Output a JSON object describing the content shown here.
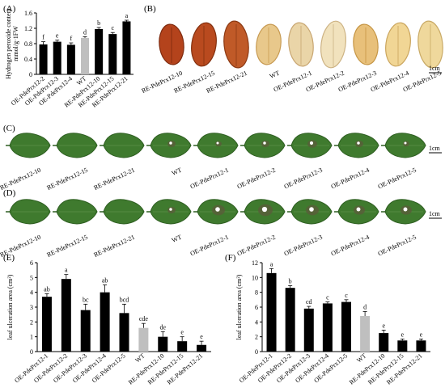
{
  "panels": {
    "A": {
      "label": "(A)"
    },
    "B": {
      "label": "(B)",
      "scale": "1cm",
      "labels": [
        "RE-PdePrx12-10",
        "RE-PdePrx12-15",
        "RE-PdePrx12-21",
        "WT",
        "OE-PdePrx12-1",
        "OE-PdePrx12-2",
        "OE-PdePrx12-3",
        "OE-PdePrx12-4",
        "OE-PdePrx12-5"
      ]
    },
    "C": {
      "label": "(C)",
      "scale": "1cm",
      "labels": [
        "RE-PdePrx12-10",
        "RE-PdePrx12-15",
        "RE-PdePrx12-21",
        "WT",
        "OE-PdePrx12-1",
        "OE-PdePrx12-2",
        "OE-PdePrx12-3",
        "OE-PdePrx12-4",
        "OE-PdePrx12-5"
      ]
    },
    "D": {
      "label": "(D)",
      "scale": "1cm",
      "labels": [
        "RE-PdePrx12-10",
        "RE-PdePrx12-15",
        "RE-PdePrx12-21",
        "WT",
        "OE-PdePrx12-1",
        "OE-PdePrx12-2",
        "OE-PdePrx12-3",
        "OE-PdePrx12-4",
        "OE-PdePrx12-5"
      ]
    },
    "E": {
      "label": "(E)"
    },
    "F": {
      "label": "(F)"
    }
  },
  "colors": {
    "bar": "#000000",
    "wt": "#bfbfbf",
    "leaf": "#3f7a2e",
    "leafDark": "#2f5f22"
  },
  "chart_data": [
    {
      "panel": "A",
      "type": "bar",
      "ylabel_lines": [
        "Hydrogen peroxide content",
        "mmol/g·1FW"
      ],
      "ylim": [
        0,
        1.6
      ],
      "yticks": [
        "0",
        "0.4",
        "0.8",
        "1.2",
        "1.6"
      ],
      "categories": [
        "OE-PdePrx12-2",
        "OE-PdePrx12-3",
        "OE-PdePrx12-4",
        "WT",
        "RE-PdePrx12-10",
        "RE-PdePrx12-15",
        "RE-PdePrx12-21"
      ],
      "values": [
        0.78,
        0.85,
        0.77,
        0.95,
        1.18,
        1.05,
        1.38
      ],
      "errors": [
        0.07,
        0.04,
        0.05,
        0.03,
        0.04,
        0.04,
        0.03
      ],
      "letters": [
        "f",
        "e",
        "f",
        "d",
        "b",
        "c",
        "a"
      ],
      "highlight": "WT"
    },
    {
      "panel": "E",
      "type": "bar",
      "ylabel": "leaf ulceration area (cm²)",
      "ylim": [
        0,
        6
      ],
      "yticks": [
        "0",
        "1",
        "2",
        "3",
        "4",
        "5",
        "6"
      ],
      "categories": [
        "OE-PdePrx12-1",
        "OE-PdePrx12-2",
        "OE-PdePrx12-3",
        "OE-PdePrx12-4",
        "OE-PdePrx12-5",
        "WT",
        "RE-PdePrx12-10",
        "RE-PdePrx12-15",
        "RE-PdePrx12-21"
      ],
      "values": [
        3.7,
        4.9,
        2.8,
        4.0,
        2.6,
        1.6,
        1.0,
        0.7,
        0.45
      ],
      "errors": [
        0.2,
        0.3,
        0.4,
        0.5,
        0.6,
        0.3,
        0.35,
        0.3,
        0.25
      ],
      "letters": [
        "ab",
        "a",
        "bc",
        "ab",
        "bcd",
        "cde",
        "de",
        "e",
        "e"
      ],
      "highlight": "WT"
    },
    {
      "panel": "F",
      "type": "bar",
      "ylabel": "leaf ulceration area (cm²)",
      "ylim": [
        0,
        12
      ],
      "yticks": [
        "0",
        "2",
        "4",
        "6",
        "8",
        "10",
        "12"
      ],
      "categories": [
        "OE-PdePrx12-1",
        "OE-PdePrx12-2",
        "OE-PdePrx12-3",
        "OE-PdePrx12-4",
        "OE-PdePrx12-5",
        "WT",
        "RE-PdePrx12-10",
        "RE-PdePrx12-15",
        "RE-PdePrx12-21"
      ],
      "values": [
        10.6,
        8.6,
        5.8,
        6.5,
        6.7,
        4.8,
        2.5,
        1.5,
        1.5
      ],
      "errors": [
        0.6,
        0.3,
        0.3,
        0.2,
        0.3,
        0.6,
        0.4,
        0.2,
        0.2
      ],
      "letters": [
        "a",
        "b",
        "cd",
        "c",
        "c",
        "d",
        "e",
        "e",
        "e"
      ],
      "highlight": "WT"
    }
  ]
}
